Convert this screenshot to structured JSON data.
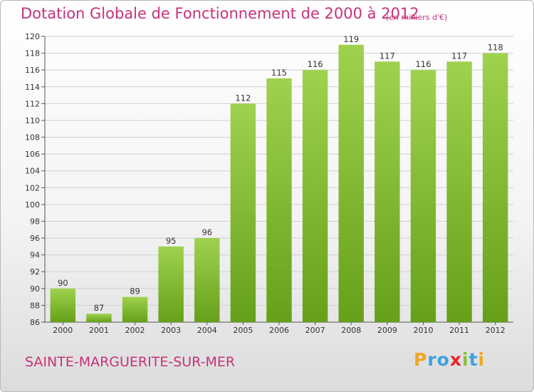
{
  "chart_data": {
    "type": "bar",
    "title": "Dotation Globale de Fonctionnement de 2000 à 2012",
    "subtitle": "(en milliers d'€)",
    "xlabel": "",
    "ylabel": "",
    "categories": [
      "2000",
      "2001",
      "2002",
      "2003",
      "2004",
      "2005",
      "2006",
      "2007",
      "2008",
      "2009",
      "2010",
      "2011",
      "2012"
    ],
    "values": [
      90,
      87,
      89,
      95,
      96,
      112,
      115,
      116,
      119,
      117,
      116,
      117,
      118
    ],
    "ylim": [
      86,
      120
    ],
    "yticks": [
      86,
      88,
      90,
      92,
      94,
      96,
      98,
      100,
      102,
      104,
      106,
      108,
      110,
      112,
      114,
      116,
      118,
      120
    ],
    "grid": true,
    "colors": {
      "bar_top": "#9fd24e",
      "bar_bottom": "#66a019",
      "title": "#c8317a"
    }
  },
  "footer": {
    "commune": "SAINTE-MARGUERITE-SUR-MER",
    "logo_letters": [
      {
        "ch": "P",
        "color": "#f2a623"
      },
      {
        "ch": "r",
        "color": "#3aa3e0"
      },
      {
        "ch": "o",
        "color": "#3aa3e0"
      },
      {
        "ch": "x",
        "color": "#e8262b"
      },
      {
        "ch": "i",
        "color": "#86c232"
      },
      {
        "ch": "t",
        "color": "#3aa3e0"
      },
      {
        "ch": "i",
        "color": "#f2a623"
      }
    ]
  }
}
